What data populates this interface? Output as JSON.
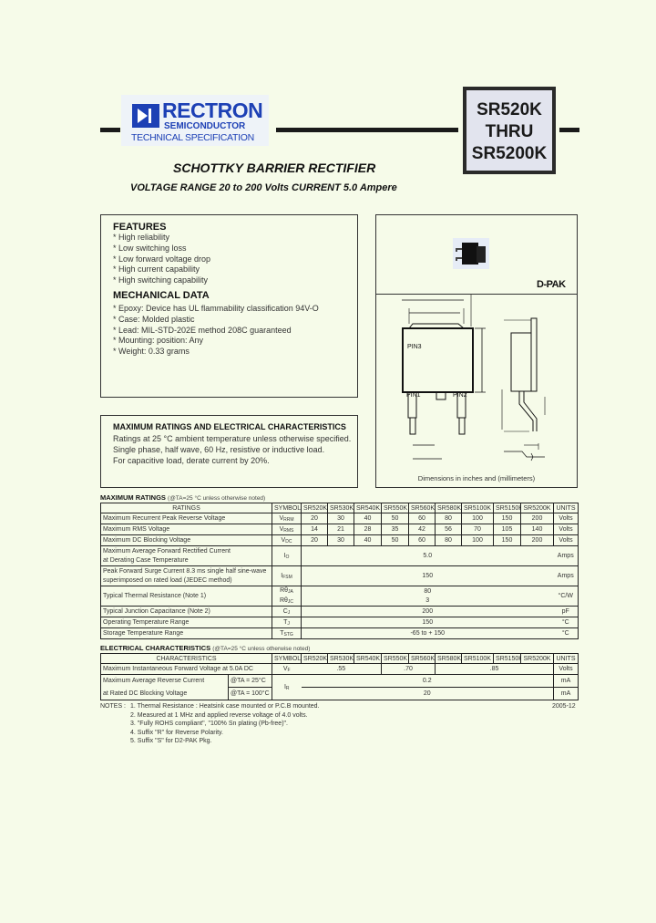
{
  "header": {
    "logo": {
      "name": "RECTRON",
      "sub": "SEMICONDUCTOR",
      "spec": "TECHNICAL SPECIFICATION"
    },
    "part_range": [
      "SR520K",
      "THRU",
      "SR5200K"
    ],
    "title": "SCHOTTKY BARRIER RECTIFIER",
    "subtitle": "VOLTAGE RANGE 20 to 200 Volts  CURRENT 5.0 Ampere",
    "brand_color": "#1d40b5"
  },
  "features": {
    "heading": "FEATURES",
    "items": [
      "* High reliability",
      "* Low switching loss",
      "* Low forward voltage drop",
      "* High current capability",
      "* High switching capability"
    ]
  },
  "mechanical": {
    "heading": "MECHANICAL DATA",
    "items": [
      "* Epoxy: Device has UL flammability classification 94V-O",
      "* Case: Molded plastic",
      "* Lead: MIL-STD-202E method 208C guaranteed",
      "* Mounting: position: Any",
      "* Weight: 0.33 grams"
    ]
  },
  "ratings_box": {
    "heading": "MAXIMUM RATINGS AND ELECTRICAL CHARACTERISTICS",
    "lines": [
      "Ratings at 25 °C ambient temperature unless otherwise specified.",
      "Single phase, half wave, 60 Hz, resistive or inductive load.",
      "For capacitive load, derate current by 20%."
    ]
  },
  "package": {
    "name": "D-PAK",
    "pin1": "PIN1",
    "pin2": "PIN2",
    "pin3": "PIN3",
    "caption": "Dimensions in inches and (millimeters)"
  },
  "max_ratings": {
    "title": "MAXIMUM RATINGS",
    "condition": "(@TA=25 °C unless otherwise noted)",
    "headers": [
      "RATINGS",
      "SYMBOL",
      "SR520K",
      "SR530K",
      "SR540K",
      "SR550K",
      "SR560K",
      "SR580K",
      "SR5100K",
      "SR5150K",
      "SR5200K",
      "UNITS"
    ],
    "rows": [
      {
        "label": "Maximum Recurrent Peak Reverse Voltage",
        "sym": "V",
        "sub": "RRM",
        "values": [
          "20",
          "30",
          "40",
          "50",
          "60",
          "80",
          "100",
          "150",
          "200"
        ],
        "unit": "Volts"
      },
      {
        "label": "Maximum RMS Voltage",
        "sym": "V",
        "sub": "RMS",
        "values": [
          "14",
          "21",
          "28",
          "35",
          "42",
          "56",
          "70",
          "105",
          "140"
        ],
        "unit": "Volts"
      },
      {
        "label": "Maximum DC Blocking Voltage",
        "sym": "V",
        "sub": "DC",
        "values": [
          "20",
          "30",
          "40",
          "50",
          "60",
          "80",
          "100",
          "150",
          "200"
        ],
        "unit": "Volts"
      },
      {
        "label": "Maximum Average Forward Rectified Current",
        "label2": "at Derating Case Temperature",
        "sym": "I",
        "sub": "O",
        "value": "5.0",
        "unit": "Amps"
      },
      {
        "label": "Peak Forward Surge Current 8.3 ms single half sine-wave",
        "label2": "superimposed on rated load (JEDEC method)",
        "sym": "I",
        "sub": "FSM",
        "value": "150",
        "unit": "Amps"
      },
      {
        "label": "Typical Thermal Resistance (Note 1)",
        "sym": "Rθ",
        "sub": "JA",
        "value": "80",
        "sym_b": "Rθ",
        "sub_b": "JC",
        "value_b": "3",
        "unit": "°C/W"
      },
      {
        "label": "Typical Junction Capacitance (Note 2)",
        "sym": "C",
        "sub": "J",
        "value": "200",
        "unit": "pF"
      },
      {
        "label": "Operating Temperature Range",
        "sym": "T",
        "sub": "J",
        "value": "150",
        "unit": "°C"
      },
      {
        "label": "Storage Temperature Range",
        "sym": "T",
        "sub": "STG",
        "value": "-65 to + 150",
        "unit": "°C"
      }
    ]
  },
  "electrical": {
    "title": "ELECTRICAL CHARACTERISTICS",
    "condition": "(@TA=25 °C unless otherwise noted)",
    "headers": [
      "CHARACTERISTICS",
      "SYMBOL",
      "SR520K",
      "SR530K",
      "SR540K",
      "SR550K",
      "SR560K",
      "SR580K",
      "SR5100K",
      "SR5150K",
      "SR5200K",
      "UNITS"
    ],
    "vf": {
      "label": "Maximum Instantaneous Forward Voltage at 5.0A DC",
      "sym": "V",
      "sub": "F",
      "values": [
        ".55",
        ".70",
        ".85"
      ],
      "unit": "Volts"
    },
    "ir": {
      "label": "Maximum Average Reverse Current",
      "label2": "at Rated DC Blocking Voltage",
      "cond1": "@TA = 25°C",
      "cond2": "@TA = 100°C",
      "sym": "I",
      "sub": "R",
      "value1": "0.2",
      "value2": "20",
      "unit1": "mA",
      "unit2": "mA"
    }
  },
  "notes": {
    "label": "NOTES :",
    "items": [
      "1. Thermal Resistance : Heatsink case mounted or P.C.B mounted.",
      "2. Measured at 1 MHz and applied reverse voltage of 4.0 volts.",
      "3. \"Fully ROHS compliant\", \"100% Sn plating (Pb-free)\".",
      "4. Suffix \"R\" for Reverse Polarity.",
      "5. Suffix \"S\" for D2-PAK Pkg."
    ],
    "date": "2005-12"
  }
}
